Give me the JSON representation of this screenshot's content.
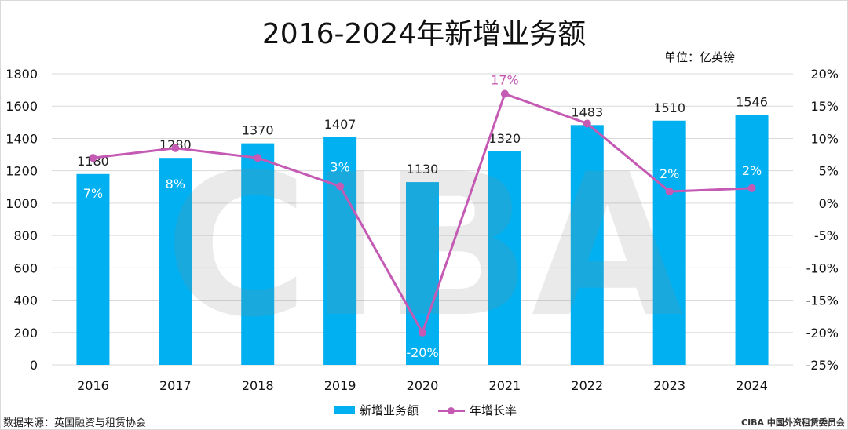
{
  "title": "2016-2024年新增业务额",
  "unit_label": "单位：亿英镑",
  "source": "数据来源：英国融资与租赁协会",
  "credit": "CIBA 中国外资租赁委员会",
  "watermark": "CIBA",
  "chart_data": {
    "type": "bar",
    "categories": [
      "2016",
      "2017",
      "2018",
      "2019",
      "2020",
      "2021",
      "2022",
      "2023",
      "2024"
    ],
    "series": [
      {
        "name": "新增业务额",
        "type": "bar",
        "axis": "left",
        "color": "#00b0f0",
        "values": [
          1180,
          1280,
          1370,
          1407,
          1130,
          1320,
          1483,
          1510,
          1546
        ],
        "labels": [
          "1180",
          "1280",
          "1370",
          "1407",
          "1130",
          "1320",
          "1483",
          "1510",
          "1546"
        ]
      },
      {
        "name": "年增长率",
        "type": "line",
        "axis": "right",
        "color": "#c45ab3",
        "values": [
          7,
          8.5,
          7,
          2.6,
          -20,
          16.9,
          12.3,
          1.8,
          2.3
        ],
        "labels": [
          "7%",
          "8%",
          "",
          "3%",
          "-20%",
          "17%",
          "",
          "2%",
          "2%"
        ]
      }
    ],
    "y_left": {
      "min": 0,
      "max": 1800,
      "ticks": [
        0,
        200,
        400,
        600,
        800,
        1000,
        1200,
        1400,
        1600,
        1800
      ]
    },
    "y_right": {
      "min": -25,
      "max": 20,
      "ticks": [
        -25,
        -20,
        -15,
        -10,
        -5,
        0,
        5,
        10,
        15,
        20
      ],
      "tick_labels": [
        "-25%",
        "-20%",
        "-15%",
        "-10%",
        "-5%",
        "0%",
        "5%",
        "10%",
        "15%",
        "20%"
      ]
    },
    "grid": "horizontal",
    "legend_position": "bottom"
  }
}
